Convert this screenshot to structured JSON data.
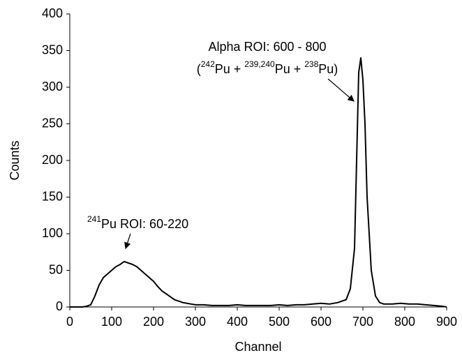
{
  "chart_data": {
    "type": "line",
    "x_label": "Channel",
    "y_label": "Counts",
    "annotations": [
      {
        "parts": [
          {
            "sup": "241"
          },
          {
            "text": "Pu   ROI: 60-220"
          }
        ]
      },
      {
        "parts": [
          {
            "text": "Alpha ROI: 600 - 800"
          }
        ]
      },
      {
        "parts": [
          {
            "text": "("
          },
          {
            "sup": "242"
          },
          {
            "text": "Pu + "
          },
          {
            "sup": "239,240"
          },
          {
            "text": "Pu + "
          },
          {
            "sup": "238"
          },
          {
            "text": "Pu)"
          }
        ]
      }
    ],
    "x": [
      0,
      10,
      20,
      30,
      40,
      50,
      60,
      70,
      80,
      90,
      100,
      110,
      120,
      130,
      140,
      150,
      160,
      170,
      180,
      190,
      200,
      210,
      220,
      230,
      240,
      250,
      260,
      270,
      280,
      290,
      300,
      320,
      340,
      360,
      380,
      400,
      420,
      440,
      460,
      480,
      500,
      520,
      540,
      560,
      580,
      600,
      620,
      640,
      660,
      670,
      680,
      685,
      690,
      695,
      700,
      705,
      710,
      720,
      730,
      740,
      750,
      770,
      790,
      810,
      830,
      850,
      870,
      890,
      900
    ],
    "series": [
      {
        "name": "Counts",
        "color": "#000000",
        "values": [
          0,
          0,
          0,
          0,
          1,
          3,
          15,
          30,
          40,
          45,
          50,
          55,
          58,
          62,
          60,
          58,
          55,
          50,
          45,
          40,
          35,
          28,
          22,
          18,
          14,
          10,
          8,
          6,
          5,
          4,
          3,
          3,
          2,
          2,
          2,
          3,
          2,
          2,
          2,
          2,
          3,
          2,
          3,
          3,
          4,
          5,
          4,
          6,
          10,
          25,
          80,
          200,
          320,
          340,
          310,
          250,
          150,
          50,
          15,
          6,
          4,
          4,
          5,
          4,
          4,
          3,
          2,
          1,
          0
        ]
      }
    ],
    "xlim": [
      0,
      900
    ],
    "xticks": [
      0,
      100,
      200,
      300,
      400,
      500,
      600,
      700,
      800,
      900
    ],
    "ylim": [
      0,
      400
    ],
    "yticks": [
      0,
      50,
      100,
      150,
      200,
      250,
      300,
      350,
      400
    ],
    "grid": false
  }
}
